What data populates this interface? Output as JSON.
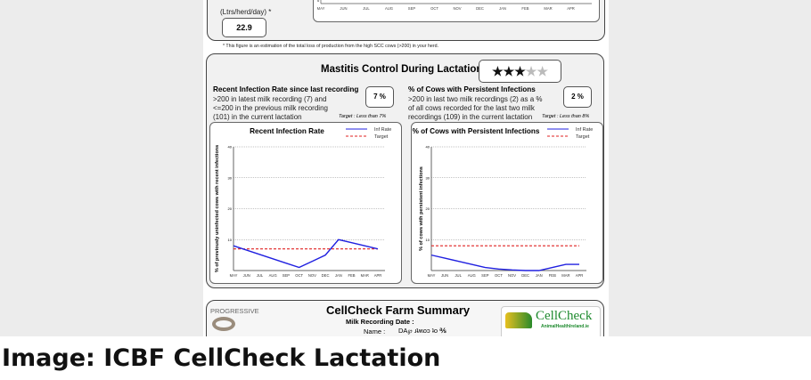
{
  "top_panel": {
    "unit_label": "(Ltrs/herd/day) *",
    "value": "22.9",
    "months": [
      "MAY",
      "JUN",
      "JUL",
      "AUG",
      "SEP",
      "OCT",
      "NOV",
      "DEC",
      "JAN",
      "FEB",
      "MAR",
      "APR"
    ],
    "axis_zero": "0"
  },
  "footnote": "* This figure is an estimation of the total loss of production from the high SCC cows (>200) in your herd.",
  "lactation": {
    "title": "Mastitis Control During Lactation",
    "stars": {
      "filled": 3,
      "total": 5
    },
    "recent": {
      "heading": "Recent Infection Rate since last recording",
      "desc1": ">200 in latest milk recording (7) and",
      "desc2": "<=200 in the previous milk recording",
      "desc3": "(101) in the current lactation",
      "value": "7 %",
      "target": "Target : Less than 7%"
    },
    "persistent": {
      "heading": "% of Cows with Persistent Infections",
      "desc1": ">200 in last two milk recordings (2) as a %",
      "desc2": "of all cows recorded for the last two milk",
      "desc3": "recordings (109) in the current lactation",
      "value": "2 %",
      "target": "Target : Less than 8%"
    }
  },
  "chart_data": [
    {
      "type": "line",
      "title": "Recent Infection Rate",
      "ylabel": "% of previously uninfected cows with recent infections",
      "categories": [
        "MAY",
        "JUN",
        "JUL",
        "AUG",
        "SEP",
        "OCT",
        "NOV",
        "DEC",
        "JAN",
        "FEB",
        "MAR",
        "APR"
      ],
      "ylim": [
        0,
        40
      ],
      "yticks": [
        10,
        20,
        30,
        40
      ],
      "grid": true,
      "legend": "top-right",
      "series": [
        {
          "name": "Inf Rate",
          "color": "#2020e0",
          "values": [
            8,
            6.6,
            5.2,
            3.8,
            2.4,
            1,
            3,
            5,
            10,
            9,
            8,
            7
          ]
        },
        {
          "name": "Target",
          "color": "#e02020",
          "dashed": true,
          "values": [
            7,
            7,
            7,
            7,
            7,
            7,
            7,
            7,
            7,
            7,
            7,
            7
          ]
        }
      ]
    },
    {
      "type": "line",
      "title": "% of Cows with Persistent Infections",
      "ylabel": "% of cows with persistent infections",
      "categories": [
        "MAY",
        "JUN",
        "JUL",
        "AUG",
        "SEP",
        "OCT",
        "NOV",
        "DEC",
        "JAN",
        "FEB",
        "MAR",
        "APR"
      ],
      "ylim": [
        0,
        40
      ],
      "yticks": [
        10,
        20,
        30,
        40
      ],
      "grid": true,
      "legend": "top-right",
      "series": [
        {
          "name": "Inf Rate",
          "color": "#2020e0",
          "values": [
            5,
            4,
            3,
            2,
            1,
            0.5,
            0.2,
            0,
            0,
            1,
            2,
            2
          ]
        },
        {
          "name": "Target",
          "color": "#e02020",
          "dashed": true,
          "values": [
            8,
            8,
            8,
            8,
            8,
            8,
            8,
            8,
            8,
            8,
            8,
            8
          ]
        }
      ]
    }
  ],
  "summary": {
    "logo_text": "PROGRESSIVE",
    "title": "CellCheck Farm Summary",
    "date_label": "Milk Recording Date :",
    "name_label": "Name :",
    "name_value": "DA℘ ɹʇʍoɔ ʇo ℁",
    "brand": "CellCheck",
    "brand_url": "AnimalHealthIreland.ie"
  },
  "caption": "Image: ICBF CellCheck Lactation"
}
